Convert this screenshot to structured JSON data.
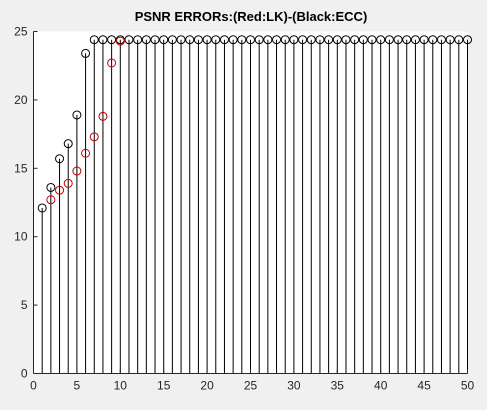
{
  "chart_data": {
    "type": "scatter",
    "subtype": "stem",
    "title": "PSNR ERRORs:(Red:LK)-(Black:ECC)",
    "xlabel": "",
    "ylabel": "",
    "xlim": [
      0,
      50
    ],
    "ylim": [
      0,
      25
    ],
    "xticks": [
      "0",
      "5",
      "10",
      "15",
      "20",
      "25",
      "30",
      "35",
      "40",
      "45",
      "50"
    ],
    "yticks": [
      "0",
      "5",
      "10",
      "15",
      "20",
      "25"
    ],
    "grid": false,
    "legend": "none",
    "series": [
      {
        "color": "#000000",
        "marker": "circle-open",
        "stem": true,
        "x": [
          1,
          2,
          3,
          4,
          5,
          6,
          7,
          8,
          9,
          10,
          11,
          12,
          13,
          14,
          15,
          16,
          17,
          18,
          19,
          20,
          21,
          22,
          23,
          24,
          25,
          26,
          27,
          28,
          29,
          30,
          31,
          32,
          33,
          34,
          35,
          36,
          37,
          38,
          39,
          40,
          41,
          42,
          43,
          44,
          45,
          46,
          47,
          48,
          49,
          50
        ],
        "values": [
          12.1,
          13.6,
          15.7,
          16.8,
          18.9,
          23.4,
          24.4,
          24.4,
          24.4,
          24.4,
          24.4,
          24.4,
          24.4,
          24.4,
          24.4,
          24.4,
          24.4,
          24.4,
          24.4,
          24.4,
          24.4,
          24.4,
          24.4,
          24.4,
          24.4,
          24.4,
          24.4,
          24.4,
          24.4,
          24.4,
          24.4,
          24.4,
          24.4,
          24.4,
          24.4,
          24.4,
          24.4,
          24.4,
          24.4,
          24.4,
          24.4,
          24.4,
          24.4,
          24.4,
          24.4,
          24.4,
          24.4,
          24.4,
          24.4,
          24.4
        ]
      },
      {
        "color": "#c00000",
        "marker": "circle-open",
        "stem": false,
        "x": [
          2,
          3,
          4,
          5,
          6,
          7,
          8,
          9,
          10
        ],
        "values": [
          12.7,
          13.4,
          13.9,
          14.8,
          16.1,
          17.3,
          18.8,
          22.7,
          24.3
        ]
      }
    ]
  }
}
